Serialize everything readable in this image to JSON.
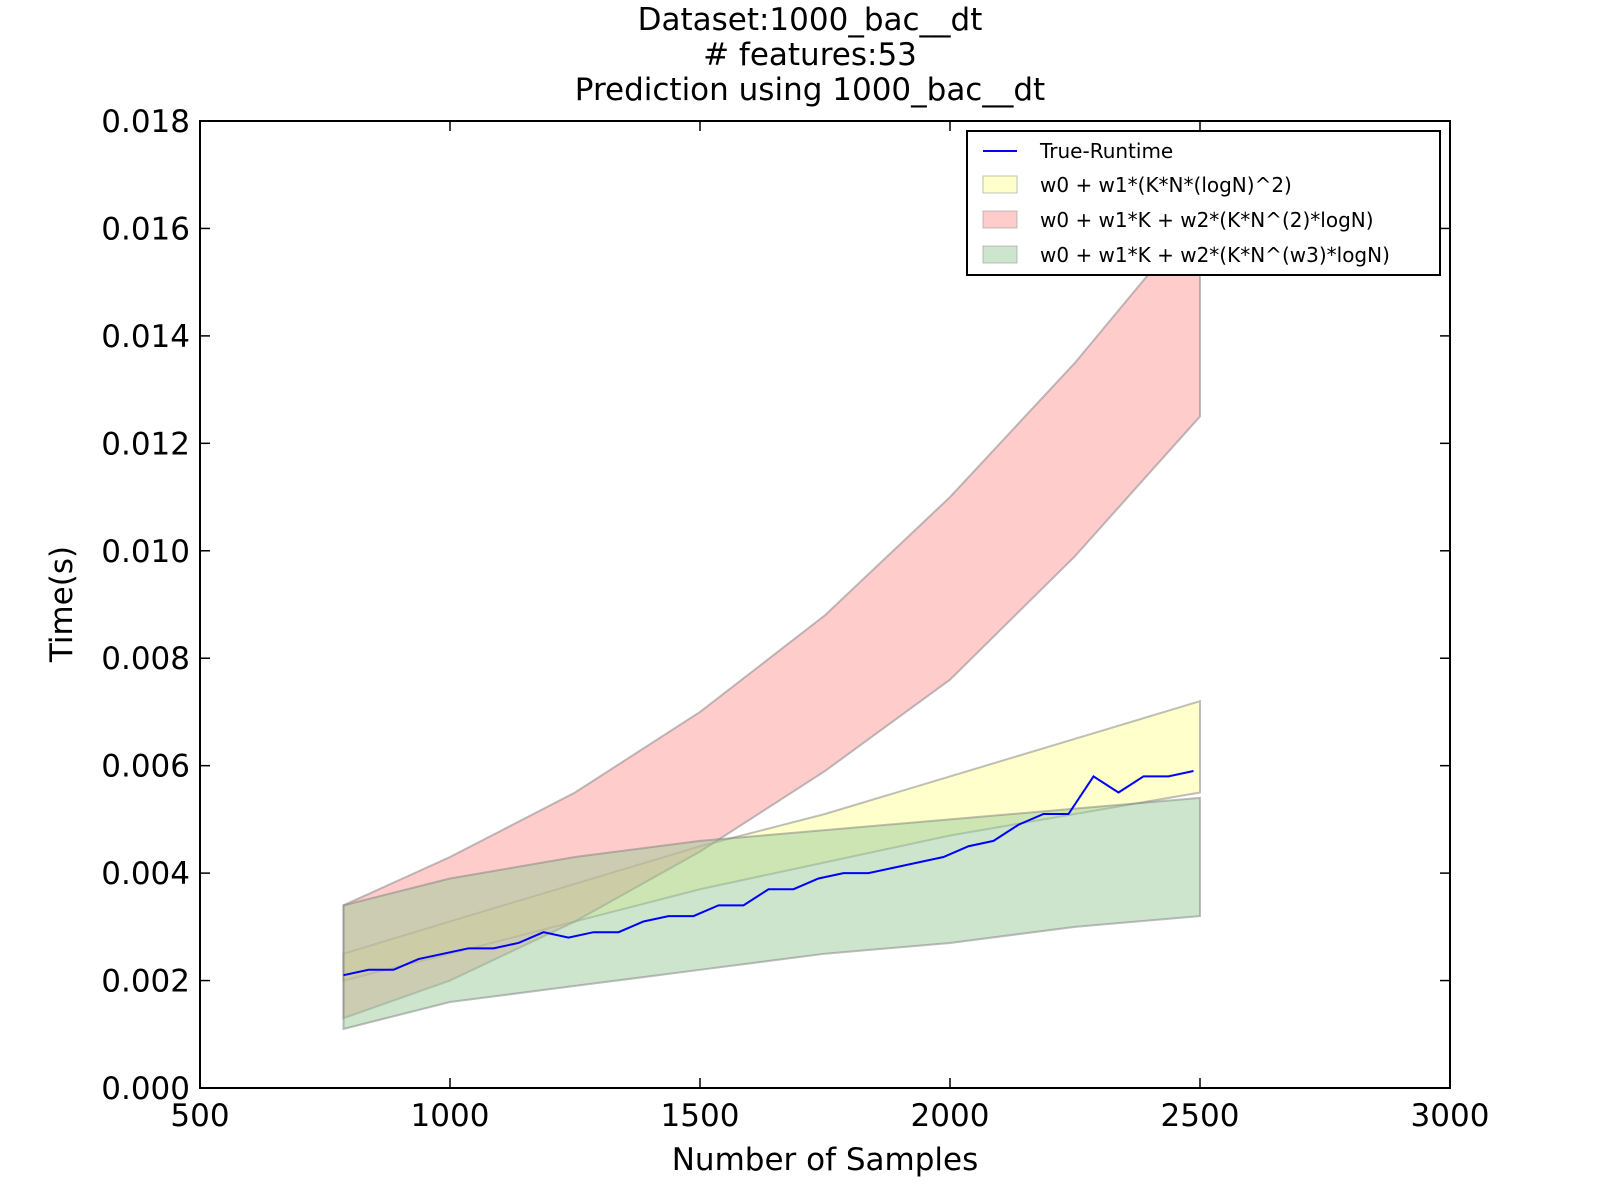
{
  "chart_data": {
    "type": "area",
    "title_lines": [
      "Dataset:1000_bac__dt",
      "# features:53",
      "Prediction using 1000_bac__dt"
    ],
    "xlabel": "Number of Samples",
    "ylabel": "Time(s)",
    "xlim": [
      500,
      3000
    ],
    "ylim": [
      0,
      0.018
    ],
    "x_ticks": [
      500,
      1000,
      1500,
      2000,
      2500,
      3000
    ],
    "x_tick_labels": [
      "500",
      "1000",
      "1500",
      "2000",
      "2500",
      "3000"
    ],
    "y_ticks": [
      0,
      0.002,
      0.004,
      0.006,
      0.008,
      0.01,
      0.012,
      0.014,
      0.016,
      0.018
    ],
    "y_tick_labels": [
      "0.000",
      "0.002",
      "0.004",
      "0.006",
      "0.008",
      "0.010",
      "0.012",
      "0.014",
      "0.016",
      "0.018"
    ],
    "grid": false,
    "legend_position": "top-right",
    "line": {
      "name": "True-Runtime",
      "color": "#0000ff",
      "x": [
        787,
        837,
        887,
        937,
        987,
        1037,
        1087,
        1137,
        1187,
        1237,
        1287,
        1337,
        1387,
        1437,
        1487,
        1537,
        1587,
        1637,
        1687,
        1737,
        1787,
        1837,
        1887,
        1937,
        1987,
        2037,
        2087,
        2137,
        2187,
        2237,
        2287,
        2337,
        2387,
        2437,
        2487
      ],
      "y": [
        0.0021,
        0.0022,
        0.0022,
        0.0024,
        0.0025,
        0.0026,
        0.0026,
        0.0027,
        0.0029,
        0.0028,
        0.0029,
        0.0029,
        0.0031,
        0.0032,
        0.0032,
        0.0034,
        0.0034,
        0.0037,
        0.0037,
        0.0039,
        0.004,
        0.004,
        0.0041,
        0.0042,
        0.0043,
        0.0045,
        0.0046,
        0.0049,
        0.0051,
        0.0051,
        0.0058,
        0.0055,
        0.0058,
        0.0058,
        0.0059
      ]
    },
    "bands": [
      {
        "name": "w0 + w1*(K*N*(logN)^2)",
        "color": "#ffff99",
        "opacity": 0.5,
        "x": [
          787,
          1000,
          1250,
          1500,
          1750,
          2000,
          2250,
          2500
        ],
        "lower": [
          0.002,
          0.0025,
          0.0031,
          0.0037,
          0.0042,
          0.0047,
          0.0051,
          0.0055
        ],
        "upper": [
          0.0025,
          0.0031,
          0.0038,
          0.0045,
          0.0051,
          0.0058,
          0.0065,
          0.0072
        ]
      },
      {
        "name": "w0 + w1*K + w2*(K*N^(2)*logN)",
        "color": "#ff9999",
        "opacity": 0.5,
        "x": [
          787,
          1000,
          1250,
          1500,
          1750,
          2000,
          2250,
          2500
        ],
        "lower": [
          0.0013,
          0.002,
          0.0031,
          0.0044,
          0.0059,
          0.0076,
          0.0099,
          0.0125
        ],
        "upper": [
          0.0034,
          0.0043,
          0.0055,
          0.007,
          0.0088,
          0.011,
          0.0135,
          0.0163
        ]
      },
      {
        "name": "w0 + w1*K + w2*(K*N^(w3)*logN)",
        "color": "#99cc99",
        "opacity": 0.5,
        "x": [
          787,
          1000,
          1250,
          1500,
          1750,
          2000,
          2250,
          2500
        ],
        "lower": [
          0.0011,
          0.0016,
          0.0019,
          0.0022,
          0.0025,
          0.0027,
          0.003,
          0.0032
        ],
        "upper": [
          0.0034,
          0.0039,
          0.0043,
          0.0046,
          0.0048,
          0.005,
          0.0052,
          0.0054
        ]
      }
    ]
  }
}
